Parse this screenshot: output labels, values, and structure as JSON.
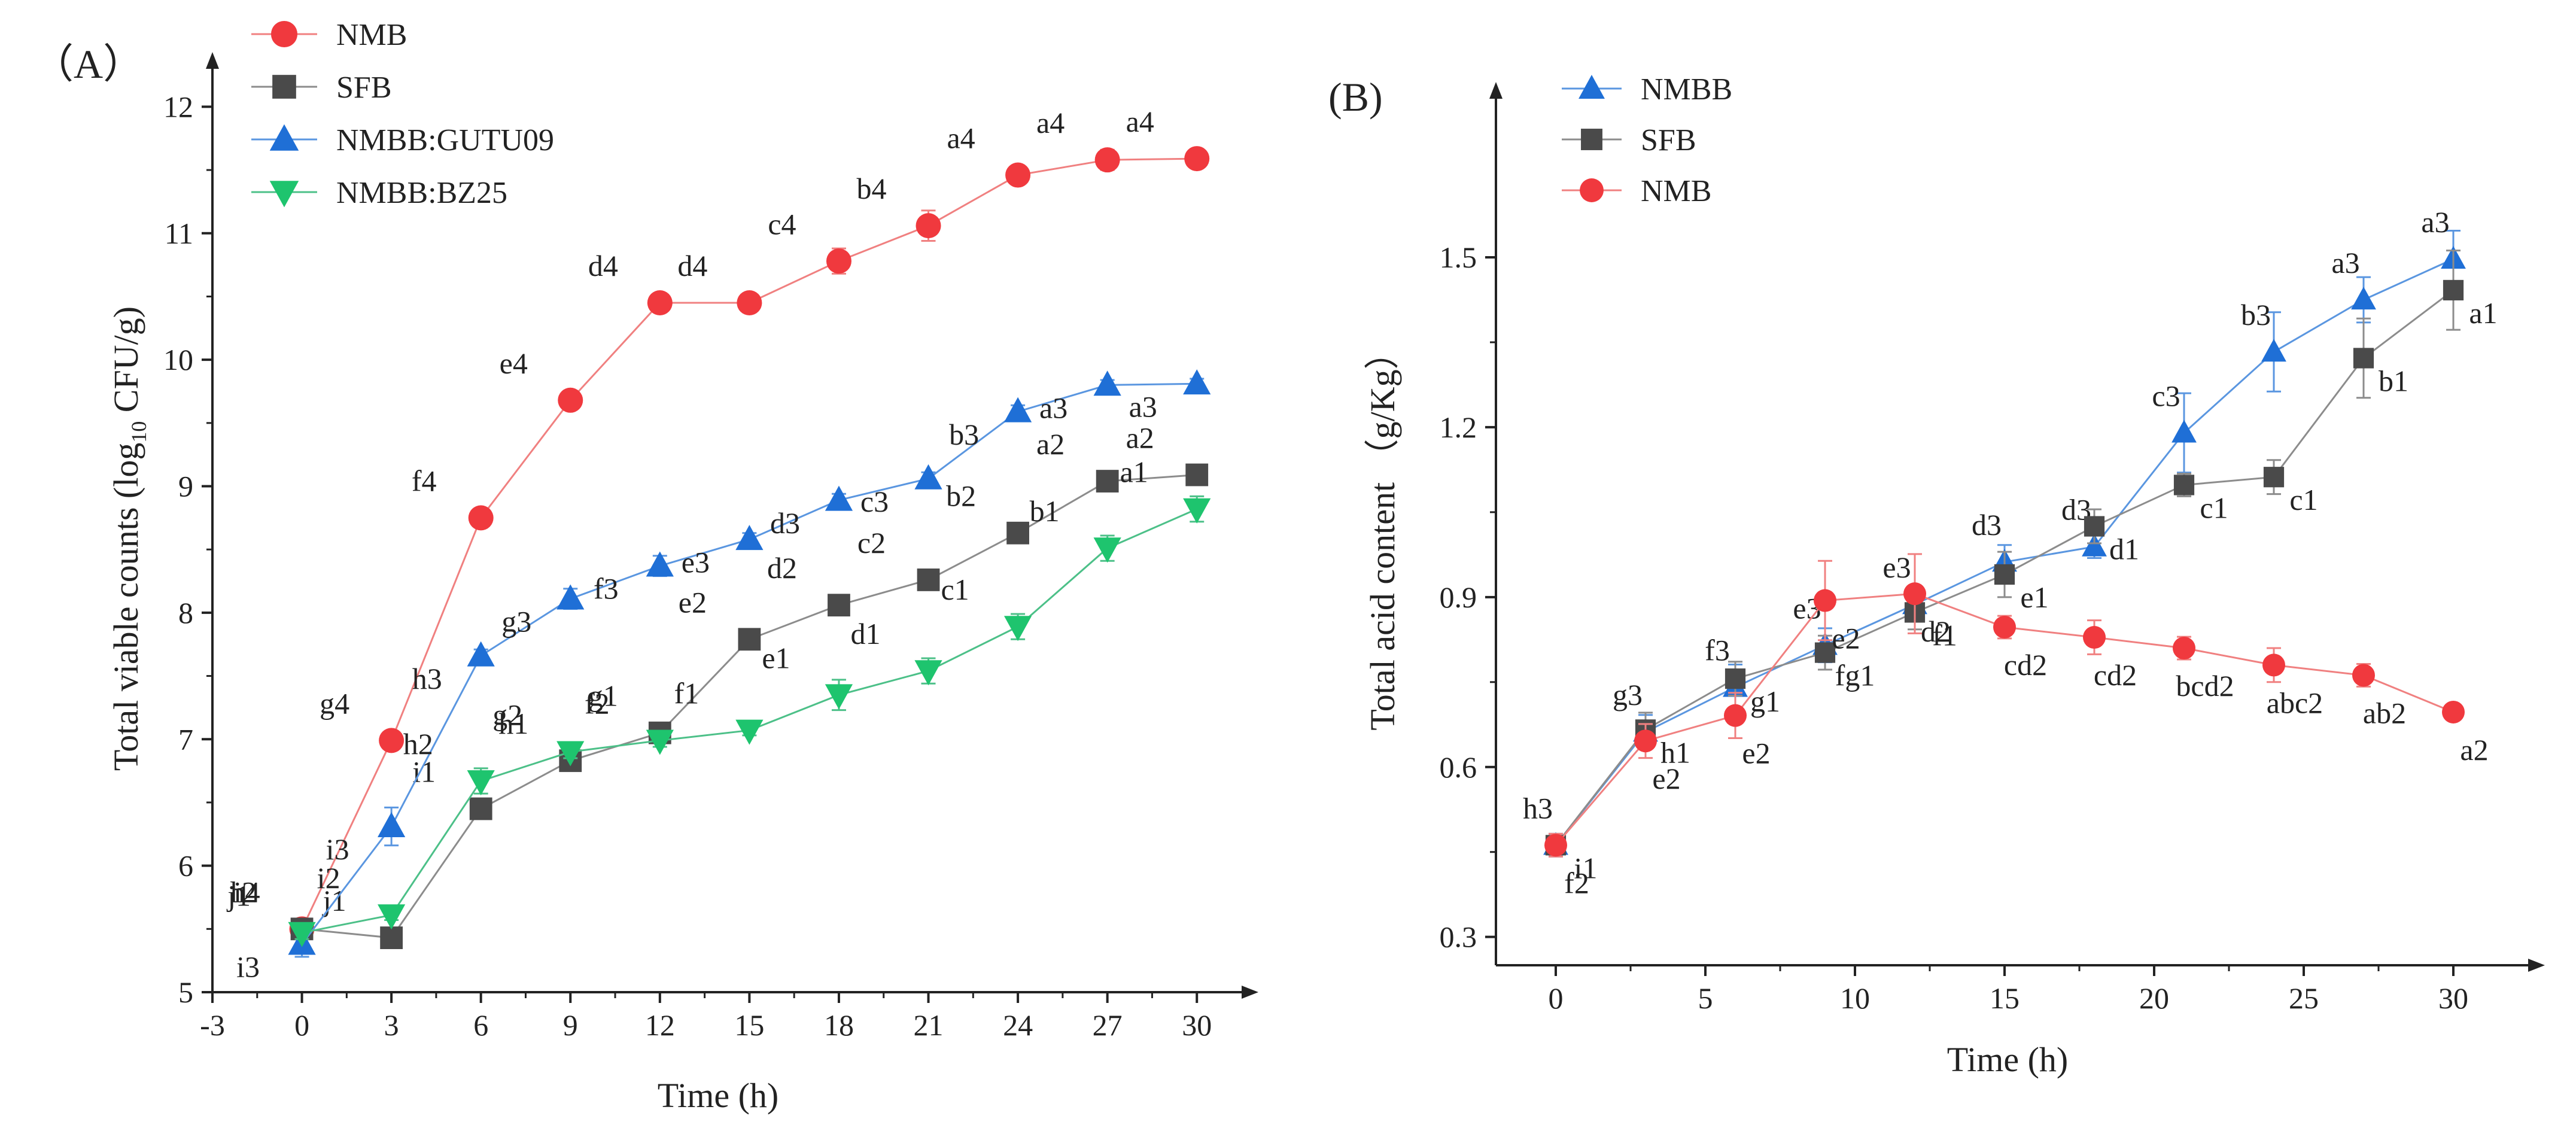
{
  "chart_data": [
    {
      "panel_label": "（A）",
      "type": "line",
      "xlabel": "Time (h)",
      "ylabel_prefix": "Total viable counts (log",
      "ylabel_sub": "10",
      "ylabel_suffix": " CFU/g)",
      "xlim": [
        -3,
        31.5
      ],
      "ylim": [
        5,
        12.3
      ],
      "x_ticks": [
        -3,
        0,
        3,
        6,
        9,
        12,
        15,
        18,
        21,
        24,
        27,
        30
      ],
      "y_ticks": [
        5,
        6,
        7,
        8,
        9,
        10,
        11,
        12
      ],
      "legend_position": "top-left",
      "series": [
        {
          "name": "NMB",
          "marker": "circle",
          "color": "#f0393e",
          "line": "#f08080",
          "x": [
            0,
            3,
            6,
            9,
            12,
            15,
            18,
            21,
            24,
            27,
            30
          ],
          "y": [
            5.5,
            6.99,
            8.75,
            9.68,
            10.45,
            10.45,
            10.78,
            11.06,
            11.46,
            11.58,
            11.59
          ],
          "err": [
            0.05,
            0.04,
            0.05,
            0.04,
            0.07,
            0.04,
            0.1,
            0.12,
            0.04,
            0.08,
            0.03
          ],
          "labels": [
            "h4",
            "g4",
            "f4",
            "e4",
            "d4",
            "d4",
            "c4",
            "b4",
            "a4",
            "a4",
            "a4"
          ]
        },
        {
          "name": "SFB",
          "marker": "square",
          "color": "#4a4a4a",
          "line": "#8c8c8c",
          "x": [
            0,
            3,
            6,
            9,
            12,
            15,
            18,
            21,
            24,
            27,
            30
          ],
          "y": [
            5.5,
            5.43,
            6.45,
            6.83,
            7.05,
            7.79,
            8.06,
            8.26,
            8.63,
            9.04,
            9.09
          ],
          "err": [
            0.05,
            0.06,
            0.05,
            0.06,
            0.05,
            0.05,
            0.04,
            0.04,
            0.05,
            0.04,
            0.04
          ],
          "labels": [
            "i2",
            "j1",
            "i1",
            "h1",
            "g1",
            "e2",
            "d2",
            "c2",
            "b2",
            "a2",
            "a2"
          ]
        },
        {
          "name": "NMBB:GUTU09",
          "marker": "triangle-up",
          "color": "#1f6fd6",
          "line": "#5a96e0",
          "x": [
            0,
            3,
            6,
            9,
            12,
            15,
            18,
            21,
            24,
            27,
            30
          ],
          "y": [
            5.38,
            6.31,
            7.66,
            8.11,
            8.37,
            8.58,
            8.89,
            9.06,
            9.59,
            9.8,
            9.81
          ],
          "err": [
            0.1,
            0.15,
            0.05,
            0.08,
            0.08,
            0.05,
            0.05,
            0.05,
            0.05,
            0.04,
            0.04
          ],
          "labels": [
            "i3",
            "i3",
            "h3",
            "g3",
            "f3",
            "e3",
            "d3",
            "c3",
            "b3",
            "a3",
            "a3"
          ]
        },
        {
          "name": "NMBB:BZ25",
          "marker": "triangle-down",
          "color": "#1ec46e",
          "line": "#4cc088",
          "x": [
            0,
            3,
            6,
            9,
            12,
            15,
            18,
            21,
            24,
            27,
            30
          ],
          "y": [
            5.47,
            5.61,
            6.67,
            6.9,
            6.99,
            7.07,
            7.35,
            7.54,
            7.89,
            8.51,
            8.82
          ],
          "err": [
            0.05,
            0.04,
            0.1,
            0.05,
            0.05,
            0.04,
            0.12,
            0.1,
            0.1,
            0.1,
            0.1
          ],
          "labels": [
            "j1",
            "i2",
            "h2",
            "g2",
            "f2",
            "f1",
            "e1",
            "d1",
            "c1",
            "b1",
            "a1"
          ]
        }
      ]
    },
    {
      "panel_label": "(B)",
      "type": "line",
      "xlabel": "Time (h)",
      "ylabel": "Total acid content （g/Kg）",
      "xlim": [
        -2,
        32.5
      ],
      "ylim": [
        0.25,
        1.78
      ],
      "x_ticks": [
        0,
        5,
        10,
        15,
        20,
        25,
        30
      ],
      "y_ticks": [
        0.3,
        0.6,
        0.9,
        1.2,
        1.5
      ],
      "y_tick_labels": [
        "0.3",
        "0.6",
        "0.9",
        "1.2",
        "1.5"
      ],
      "legend_position": "top-left",
      "series": [
        {
          "name": "NMBB",
          "marker": "triangle-up",
          "color": "#1f6fd6",
          "line": "#5a96e0",
          "x": [
            0,
            3,
            6,
            9,
            12,
            15,
            18,
            21,
            24,
            27,
            30
          ],
          "y": [
            0.462,
            0.662,
            0.741,
            0.815,
            0.887,
            0.962,
            0.989,
            1.19,
            1.333,
            1.425,
            1.497
          ],
          "err": [
            0.02,
            0.03,
            0.04,
            0.03,
            0.03,
            0.03,
            0.02,
            0.07,
            0.07,
            0.04,
            0.05
          ],
          "labels": [
            "h3",
            "g3",
            "f3",
            "e3",
            "e3",
            "d3",
            "d3",
            "c3",
            "b3",
            "a3",
            "a3"
          ]
        },
        {
          "name": "SFB",
          "marker": "square",
          "color": "#4a4a4a",
          "line": "#8c8c8c",
          "x": [
            0,
            3,
            6,
            9,
            12,
            15,
            18,
            21,
            24,
            27,
            30
          ],
          "y": [
            0.462,
            0.666,
            0.756,
            0.802,
            0.873,
            0.94,
            1.025,
            1.098,
            1.112,
            1.322,
            1.442
          ],
          "err": [
            0.02,
            0.03,
            0.03,
            0.03,
            0.03,
            0.04,
            0.03,
            0.02,
            0.03,
            0.07,
            0.07
          ],
          "labels": [
            "i1",
            "h1",
            "g1",
            "fg1",
            "f1",
            "e1",
            "d1",
            "c1",
            "c1",
            "b1",
            "a1"
          ]
        },
        {
          "name": "NMB",
          "marker": "circle",
          "color": "#f0393e",
          "line": "#f08080",
          "x": [
            0,
            3,
            6,
            9,
            12,
            15,
            18,
            21,
            24,
            27,
            30
          ],
          "y": [
            0.462,
            0.646,
            0.691,
            0.894,
            0.906,
            0.847,
            0.829,
            0.81,
            0.78,
            0.762,
            0.697
          ],
          "err": [
            0.02,
            0.03,
            0.04,
            0.07,
            0.07,
            0.02,
            0.03,
            0.02,
            0.03,
            0.02,
            0.01
          ],
          "labels": [
            "f2",
            "e2",
            "e2",
            "e2",
            "d2",
            "cd2",
            "cd2",
            "bcd2",
            "abc2",
            "ab2",
            "a2"
          ]
        }
      ]
    }
  ]
}
